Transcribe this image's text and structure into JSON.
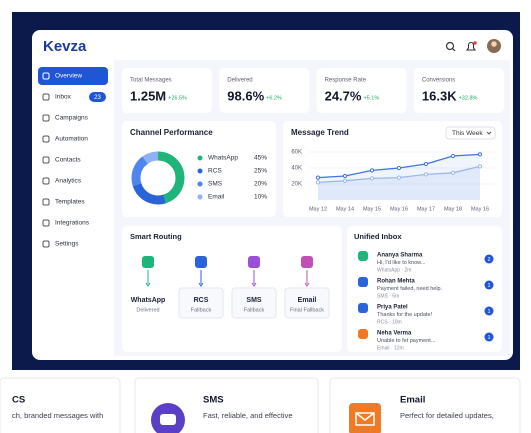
{
  "header": {
    "logo": "Kevza"
  },
  "sidebar": [
    {
      "label": "Overview"
    },
    {
      "label": "Inbox",
      "badge": "23"
    },
    {
      "label": "Campaigns"
    },
    {
      "label": "Automation"
    },
    {
      "label": "Contacts"
    },
    {
      "label": "Analytics"
    },
    {
      "label": "Templates"
    },
    {
      "label": "Integrations"
    },
    {
      "label": "Settings"
    }
  ],
  "stats": [
    {
      "label": "Total Messages",
      "value": "1.25M",
      "change": "+26.5%"
    },
    {
      "label": "Delivered",
      "value": "98.6%",
      "change": "+6.2%"
    },
    {
      "label": "Response Rate",
      "value": "24.7%",
      "change": "+5.1%"
    },
    {
      "label": "Conversions",
      "value": "16.3K",
      "change": "+32.8%"
    }
  ],
  "channel_performance": {
    "type": "donut",
    "title": "Channel Performance",
    "categories": [
      "WhatsApp",
      "RCS",
      "SMS",
      "Email"
    ],
    "values": [
      45,
      25,
      20,
      10
    ],
    "value_labels": [
      "45%",
      "25%",
      "20%",
      "10%"
    ],
    "colors": [
      "#1fb57a",
      "#2b63d9",
      "#4f86ee",
      "#8fb1f4"
    ]
  },
  "message_trend": {
    "type": "line",
    "title": "Message Trend",
    "period": "This Week",
    "categories": [
      "May 12",
      "May 14",
      "May 15",
      "May 16",
      "May 17",
      "May 18",
      "May 16"
    ],
    "ylim": [
      0,
      60000
    ],
    "yticks": [
      {
        "value": 20000,
        "label": "20K"
      },
      {
        "value": 40000,
        "label": "40K"
      },
      {
        "value": 60000,
        "label": "60K"
      }
    ],
    "series": [
      {
        "color": "#3f73de",
        "values": [
          28000,
          30000,
          37000,
          40000,
          45000,
          55000,
          57000
        ]
      },
      {
        "color": "#9bb7ee",
        "values": [
          22000,
          24000,
          27000,
          28000,
          32000,
          34000,
          42000
        ]
      }
    ]
  },
  "smart_routing": {
    "title": "Smart Routing",
    "steps": [
      {
        "name": "WhatsApp",
        "status": "Delivered"
      },
      {
        "name": "RCS",
        "status": "Fallback"
      },
      {
        "name": "SMS",
        "status": "Fallback"
      },
      {
        "name": "Email",
        "status": "Final Fallback"
      }
    ]
  },
  "unified_inbox": {
    "title": "Unified Inbox",
    "items": [
      {
        "name": "Ananya Sharma",
        "message": "Hi, I'd like to know...",
        "meta": "WhatsApp · 2m",
        "badge": "2"
      },
      {
        "name": "Rohan Mehta",
        "message": "Payment failed, need help.",
        "meta": "SMS · 5m",
        "badge": "1"
      },
      {
        "name": "Priya Patel",
        "message": "Thanks for the update!",
        "meta": "RCS · 10m",
        "badge": "1"
      },
      {
        "name": "Neha Verma",
        "message": "Unable to fet payment...",
        "meta": "Email · 12m",
        "badge": "1"
      }
    ]
  },
  "features": [
    {
      "title": "CS",
      "text": "ch, branded messages with"
    },
    {
      "title": "SMS",
      "text": "Fast, reliable, and effective"
    },
    {
      "title": "Email",
      "text": "Perfect for detailed updates,"
    }
  ]
}
